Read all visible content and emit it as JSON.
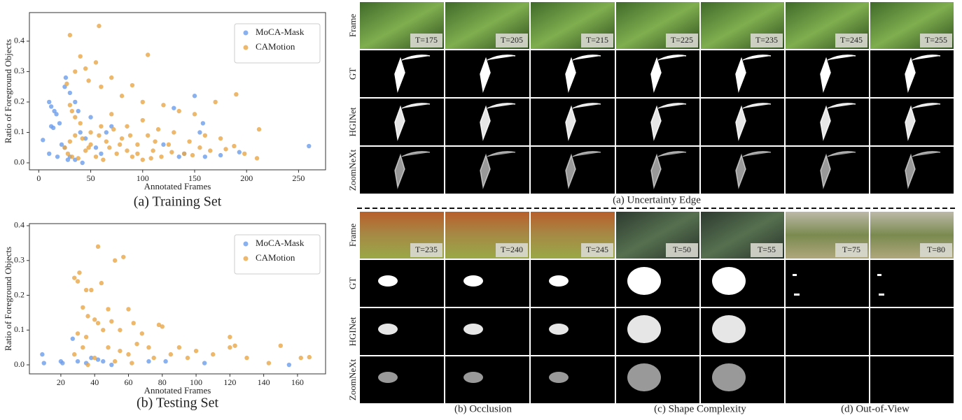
{
  "chart_data": [
    {
      "type": "scatter",
      "caption": "(a) Training Set",
      "xlabel": "Annotated Frames",
      "ylabel": "Ratio of Foreground Objects",
      "xlim": [
        -9,
        276
      ],
      "ylim": [
        -0.023,
        0.494
      ],
      "xticks": [
        0,
        50,
        100,
        150,
        200,
        250
      ],
      "yticks": [
        {
          "value": 0,
          "label": "0.0"
        },
        {
          "value": 0.1,
          "label": "0.1"
        },
        0.2,
        0.3,
        0.4
      ],
      "legend": "upper right",
      "series": [
        {
          "name": "MoCA-Mask",
          "color": "#6d9eeb",
          "x": [
            4,
            10,
            12,
            15,
            17,
            12,
            14,
            20,
            25,
            26,
            30,
            35,
            38,
            40,
            45,
            22,
            25,
            30,
            35,
            50,
            55,
            60,
            65,
            70,
            120,
            130,
            135,
            140,
            150,
            155,
            158,
            160,
            175,
            193,
            260,
            10,
            18,
            28,
            42
          ],
          "values": [
            0.075,
            0.2,
            0.185,
            0.17,
            0.16,
            0.12,
            0.115,
            0.13,
            0.25,
            0.28,
            0.23,
            0.2,
            0.17,
            0.1,
            0.08,
            0.06,
            0.05,
            0.02,
            0.01,
            0.15,
            0.05,
            0.03,
            0.1,
            0.12,
            0.06,
            0.18,
            0.02,
            0.03,
            0.22,
            0.1,
            0.13,
            0.02,
            0.025,
            0.035,
            0.055,
            0.03,
            0.02,
            0.01,
            0.0
          ]
        },
        {
          "name": "CAMotion",
          "color": "#e8a646",
          "x": [
            30,
            58,
            40,
            55,
            45,
            105,
            70,
            27,
            48,
            60,
            90,
            35,
            80,
            100,
            120,
            135,
            150,
            170,
            190,
            212,
            210,
            188,
            175,
            160,
            145,
            130,
            115,
            100,
            85,
            70,
            60,
            50,
            40,
            35,
            30,
            25,
            28,
            32,
            38,
            45,
            50,
            55,
            62,
            68,
            75,
            80,
            85,
            90,
            95,
            100,
            105,
            110,
            118,
            125,
            140,
            155,
            165,
            30,
            32,
            35,
            42,
            48,
            58,
            65,
            72,
            78,
            88,
            95,
            108,
            112,
            128,
            148,
            180,
            198
          ],
          "values": [
            0.42,
            0.45,
            0.35,
            0.33,
            0.31,
            0.355,
            0.28,
            0.26,
            0.27,
            0.25,
            0.255,
            0.3,
            0.22,
            0.2,
            0.19,
            0.17,
            0.16,
            0.2,
            0.225,
            0.11,
            0.015,
            0.055,
            0.08,
            0.09,
            0.07,
            0.1,
            0.11,
            0.14,
            0.12,
            0.16,
            0.12,
            0.1,
            0.13,
            0.09,
            0.07,
            0.05,
            0.03,
            0.02,
            0.015,
            0.04,
            0.06,
            0.02,
            0.01,
            0.05,
            0.03,
            0.08,
            0.04,
            0.02,
            0.06,
            0.01,
            0.09,
            0.04,
            0.02,
            0.06,
            0.03,
            0.05,
            0.04,
            0.19,
            0.17,
            0.15,
            0.08,
            0.05,
            0.09,
            0.07,
            0.11,
            0.06,
            0.09,
            0.03,
            0.015,
            0.07,
            0.035,
            0.025,
            0.045,
            0.03
          ]
        }
      ]
    },
    {
      "type": "scatter",
      "caption": "(b) Testing Set",
      "xlabel": "Annotated Frames",
      "ylabel": "Ratio of Foreground Objects",
      "xlim": [
        1.4,
        176.6
      ],
      "ylim": [
        -0.026,
        0.406
      ],
      "xticks": [
        20,
        40,
        60,
        80,
        100,
        120,
        140,
        160
      ],
      "yticks": [
        {
          "value": 0,
          "label": "0.0"
        },
        {
          "value": 0.1,
          "label": "0.1"
        },
        0.2,
        0.3,
        0.4
      ],
      "legend": "upper right",
      "series": [
        {
          "name": "MoCA-Mask",
          "color": "#6d9eeb",
          "x": [
            9,
            10,
            20,
            21,
            30,
            35,
            38,
            42,
            45,
            27,
            72,
            82,
            105,
            155,
            50
          ],
          "values": [
            0.03,
            0.005,
            0.01,
            0.005,
            0.01,
            0.005,
            0.02,
            0.015,
            0.01,
            0.075,
            0.01,
            0.01,
            0.005,
            0.0,
            0.0
          ]
        },
        {
          "name": "CAMotion",
          "color": "#e8a646",
          "x": [
            42,
            57,
            52,
            31,
            28,
            30,
            44,
            35,
            38,
            33,
            48,
            60,
            36,
            40,
            42,
            50,
            63,
            78,
            80,
            45,
            55,
            68,
            30,
            35,
            65,
            72,
            90,
            100,
            110,
            120,
            123,
            150,
            120,
            85,
            95,
            60,
            40,
            28,
            48,
            55,
            75,
            130,
            143,
            162,
            167,
            52,
            33,
            36,
            62
          ],
          "values": [
            0.34,
            0.31,
            0.3,
            0.265,
            0.25,
            0.24,
            0.235,
            0.215,
            0.215,
            0.165,
            0.16,
            0.16,
            0.14,
            0.13,
            0.12,
            0.125,
            0.12,
            0.115,
            0.11,
            0.1,
            0.1,
            0.09,
            0.09,
            0.08,
            0.06,
            0.05,
            0.05,
            0.04,
            0.03,
            0.05,
            0.055,
            0.055,
            0.08,
            0.03,
            0.02,
            0.03,
            0.02,
            0.03,
            0.05,
            0.04,
            0.02,
            0.02,
            0.005,
            0.02,
            0.022,
            0.01,
            0.05,
            0.0,
            0.005
          ]
        }
      ]
    }
  ],
  "panel_top": {
    "row_labels": [
      "Frame",
      "GT",
      "HGINet",
      "ZoomNeXt"
    ],
    "time_labels": [
      "T=175",
      "T=205",
      "T=215",
      "T=225",
      "T=235",
      "T=245",
      "T=255"
    ],
    "caption": "(a) Uncertainty Edge"
  },
  "panel_bottom": {
    "row_labels": [
      "Frame",
      "GT",
      "HGINet",
      "ZoomNeXt"
    ],
    "time_labels": [
      "T=235",
      "T=240",
      "T=245",
      "T=50",
      "T=55",
      "T=75",
      "T=80"
    ],
    "captions": [
      "(b) Occlusion",
      "(c) Shape Complexity",
      "(d) Out-of-View"
    ]
  }
}
